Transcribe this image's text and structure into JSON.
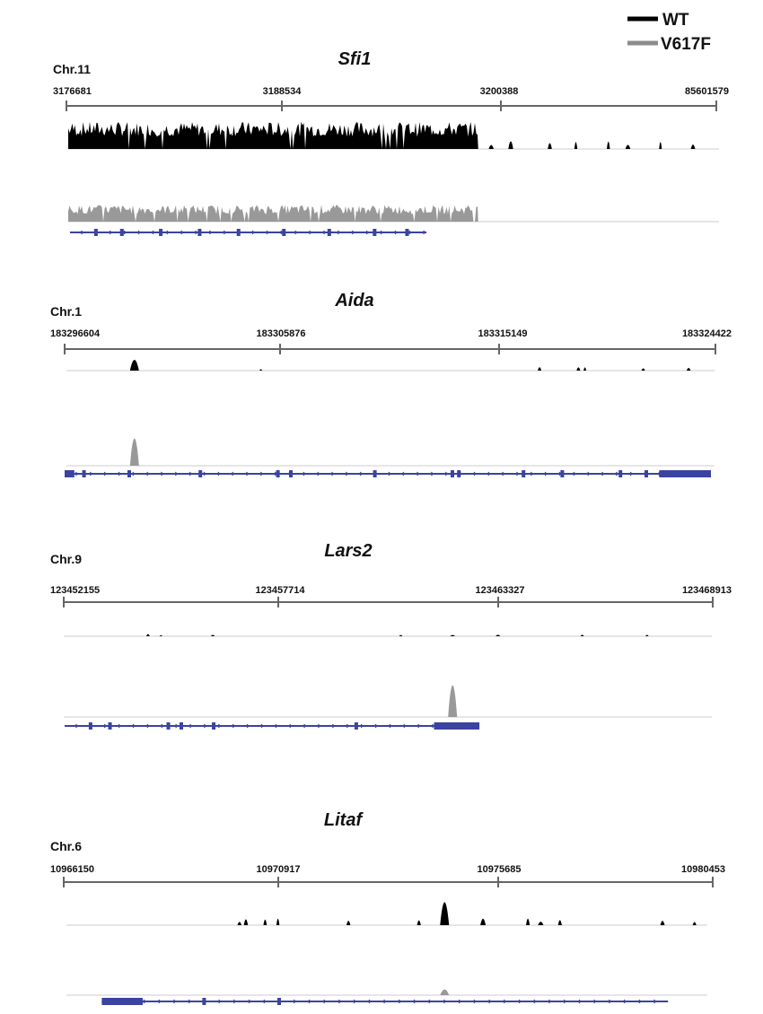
{
  "legend": [
    {
      "label": "WT",
      "color": "#000000"
    },
    {
      "label": "V617F",
      "color": "#8c8c8c"
    }
  ],
  "colors": {
    "wt": "#000000",
    "mutant": "#999999",
    "gene_model": "#3b43a0",
    "axis": "#666666",
    "baseline": "#cccccc"
  },
  "panels": [
    {
      "gene": "Sfi1",
      "chromosome": "Chr.11",
      "ticks": [
        "3176681",
        "3188534",
        "3200388",
        "85601579"
      ],
      "wt_profile": {
        "dense_from": 0.0,
        "dense_to": 0.63,
        "level": 0.8,
        "peaks": [
          0.65,
          0.68,
          0.74,
          0.78,
          0.83,
          0.86,
          0.91,
          0.96
        ]
      },
      "mutant_profile": {
        "dense_from": 0.0,
        "dense_to": 0.63,
        "level": 0.55,
        "peaks": []
      },
      "gene_model": {
        "from": 0.0,
        "to": 0.55,
        "thick": [],
        "exons": [
          0.04,
          0.08,
          0.14,
          0.2,
          0.26,
          0.33,
          0.4,
          0.47,
          0.52
        ]
      }
    },
    {
      "gene": "Aida",
      "chromosome": "Chr.1",
      "ticks": [
        "183296604",
        "183305876",
        "183315149",
        "183324422"
      ],
      "wt_profile": {
        "dense_from": null,
        "dense_to": null,
        "level": 0,
        "peaks": [
          0.105,
          0.3,
          0.73,
          0.79,
          0.8,
          0.89,
          0.96
        ]
      },
      "mutant_profile": {
        "dense_from": null,
        "dense_to": null,
        "level": 0,
        "peaks": [
          0.105
        ]
      },
      "gene_model": {
        "from": 0.0,
        "to": 1.0,
        "thick": [
          [
            0.0,
            0.015
          ],
          [
            0.92,
            1.0
          ]
        ],
        "exons": [
          0.03,
          0.1,
          0.21,
          0.33,
          0.35,
          0.48,
          0.6,
          0.61,
          0.71,
          0.77,
          0.86,
          0.9
        ]
      }
    },
    {
      "gene": "Lars2",
      "chromosome": "Chr.9",
      "ticks": [
        "123452155",
        "123457714",
        "123463327",
        "123468913"
      ],
      "wt_profile": {
        "dense_from": null,
        "dense_to": null,
        "level": 0,
        "peaks": [
          0.13,
          0.15,
          0.23,
          0.52,
          0.6,
          0.67,
          0.8,
          0.9
        ]
      },
      "mutant_profile": {
        "dense_from": null,
        "dense_to": null,
        "level": 0,
        "peaks": [
          0.6
        ]
      },
      "gene_model": {
        "from": 0.0,
        "to": 0.64,
        "thick": [
          [
            0.57,
            0.64
          ]
        ],
        "exons": [
          0.04,
          0.07,
          0.16,
          0.18,
          0.23,
          0.45
        ]
      }
    },
    {
      "gene": "Litaf",
      "chromosome": "Chr.6",
      "ticks": [
        "10966150",
        "10970917",
        "10975685",
        "10980453"
      ],
      "wt_profile": {
        "dense_from": null,
        "dense_to": null,
        "level": 0,
        "peaks": [
          0.27,
          0.28,
          0.31,
          0.33,
          0.44,
          0.55,
          0.59,
          0.65,
          0.72,
          0.74,
          0.77,
          0.93,
          0.98
        ]
      },
      "mutant_profile": {
        "dense_from": null,
        "dense_to": null,
        "level": 0,
        "peaks": [
          0.59
        ]
      },
      "gene_model": {
        "from": 0.09,
        "to": 0.92,
        "thick": [
          [
            0.09,
            0.15
          ]
        ],
        "exons": [
          0.24,
          0.35
        ]
      }
    }
  ]
}
